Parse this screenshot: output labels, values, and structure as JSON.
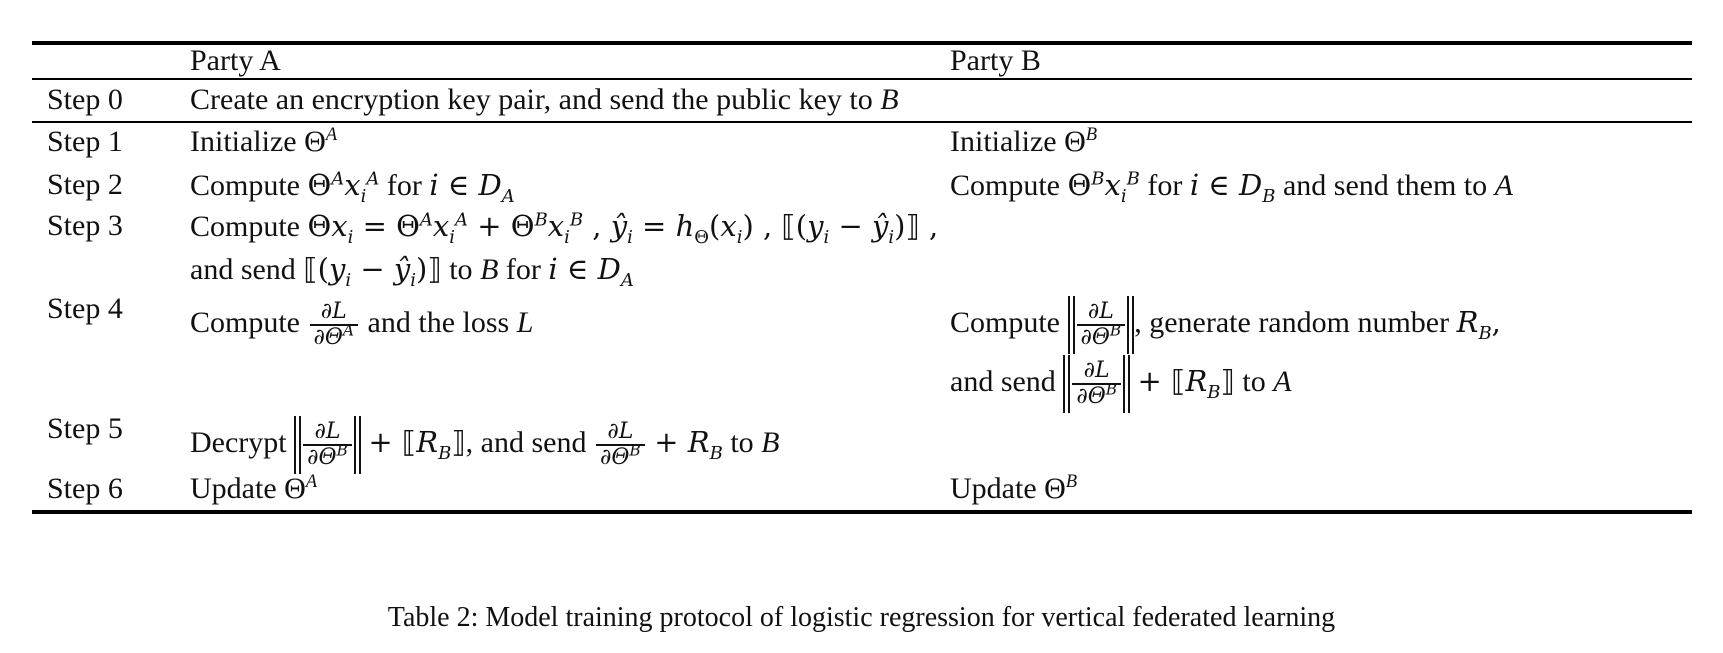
{
  "header": {
    "party_a": "Party A",
    "party_b": "Party B"
  },
  "steps": [
    {
      "label": "Step 0",
      "party_a": "Create an encryption key pair, and send the public key to",
      "party_a_target": "B",
      "party_b": ""
    },
    {
      "label": "Step 1",
      "party_a": "Initialize Θ",
      "party_a_sup": "A",
      "party_b": "Initialize Θ",
      "party_b_sup": "B"
    },
    {
      "label": "Step 2",
      "party_a_pre": "Compute",
      "party_a_post": "for",
      "party_b_pre": "Compute",
      "party_b_post": "for",
      "party_b_tail": "and send them to",
      "party_b_target": "A"
    },
    {
      "label": "Step 3",
      "party_a_pre": "Compute",
      "party_a_line2_pre": "and send",
      "party_a_line2_mid": "to",
      "party_a_line2_target": "B",
      "party_a_line2_post": "for"
    },
    {
      "label": "Step 4",
      "party_a_pre": "Compute",
      "party_a_post": "and the loss",
      "party_a_loss": "L",
      "party_b_pre": "Compute",
      "party_b_mid": ", generate random number",
      "party_b_line2_pre": "and send",
      "party_b_line2_post": "to",
      "party_b_line2_target": "A"
    },
    {
      "label": "Step 5",
      "party_a_pre": "Decrypt",
      "party_a_mid": ", and send",
      "party_a_post": "to",
      "party_a_target": "B"
    },
    {
      "label": "Step 6",
      "party_a": "Update Θ",
      "party_a_sup": "A",
      "party_b": "Update Θ",
      "party_b_sup": "B"
    }
  ],
  "caption": "Table 2: Model training protocol of logistic regression for vertical federated learning"
}
